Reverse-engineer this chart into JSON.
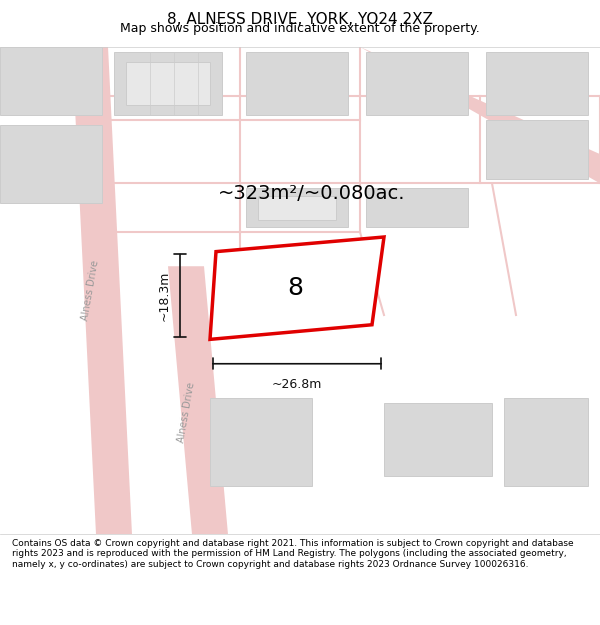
{
  "title": "8, ALNESS DRIVE, YORK, YO24 2XZ",
  "subtitle": "Map shows position and indicative extent of the property.",
  "footer": "Contains OS data © Crown copyright and database right 2021. This information is subject to Crown copyright and database rights 2023 and is reproduced with the permission of HM Land Registry. The polygons (including the associated geometry, namely x, y co-ordinates) are subject to Crown copyright and database rights 2023 Ordnance Survey 100026316.",
  "area_label": "~323m²/~0.080ac.",
  "house_number": "8",
  "width_label": "~26.8m",
  "height_label": "~18.3m",
  "map_bg": "#f5f5f5",
  "road_color": "#f0c8c8",
  "building_fill": "#d8d8d8",
  "building_edge": "#cccccc",
  "plot_fill": "#ffffff",
  "plot_edge": "#e00000",
  "road_label_color": "#aaaaaa",
  "dim_color": "#111111",
  "title_fontsize": 11,
  "subtitle_fontsize": 9,
  "footer_fontsize": 6.5,
  "area_fontsize": 14,
  "house_num_fontsize": 18,
  "dim_fontsize": 9
}
